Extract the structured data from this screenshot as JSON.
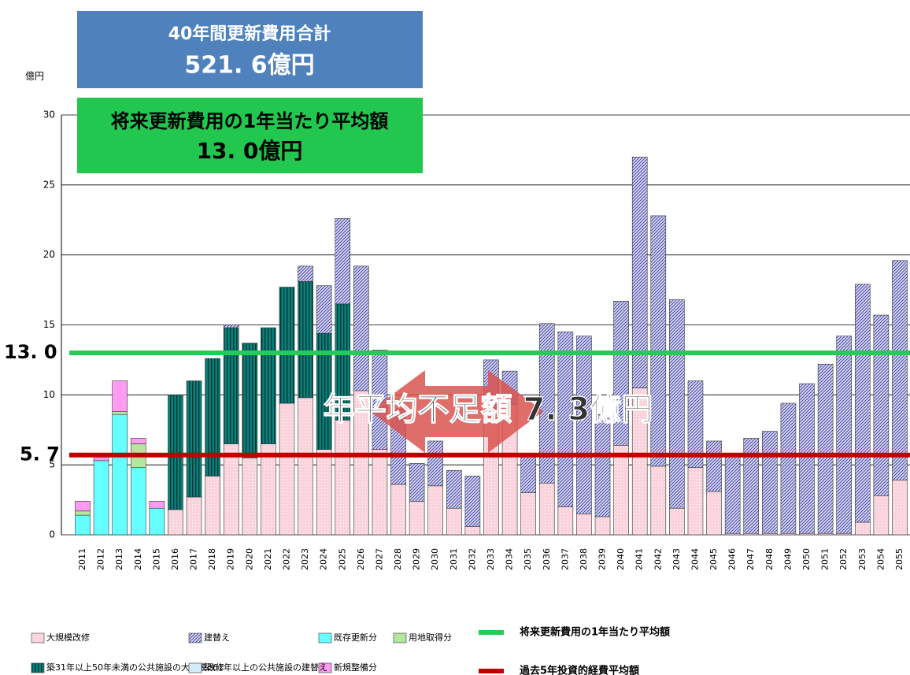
{
  "chart_data": {
    "type": "stacked-bar",
    "unit_label": "億円",
    "total_box": {
      "title": "40年間更新費用合計",
      "value": "521. 6億円"
    },
    "average_box": {
      "title": "将来更新費用の1年当たり平均額",
      "value": "13. 0億円"
    },
    "gap_label": "年平均不足額 7. 3億円",
    "categories": [
      "2011",
      "2012",
      "2013",
      "2014",
      "2015",
      "2016",
      "2017",
      "2018",
      "2019",
      "2020",
      "2021",
      "2022",
      "2023",
      "2024",
      "2025",
      "2026",
      "2027",
      "2028",
      "2029",
      "2030",
      "2031",
      "2032",
      "2033",
      "2034",
      "2035",
      "2036",
      "2037",
      "2038",
      "2039",
      "2040",
      "2041",
      "2042",
      "2043",
      "2044",
      "2045",
      "2046",
      "2047",
      "2048",
      "2049",
      "2050",
      "2051",
      "2052",
      "2053",
      "2054",
      "2055"
    ],
    "ylim": [
      0,
      30
    ],
    "yticks": [
      0,
      5,
      10,
      15,
      20,
      25,
      30
    ],
    "grid": true,
    "series": [
      {
        "name": "既存更新分",
        "color": "#66ffff",
        "pattern": "solid",
        "values": [
          1.4,
          5.3,
          8.6,
          4.8,
          1.9,
          0,
          0,
          0,
          0,
          0,
          0,
          0,
          0,
          0,
          0,
          0,
          0,
          0,
          0,
          0,
          0,
          0,
          0,
          0,
          0,
          0,
          0,
          0,
          0,
          0,
          0,
          0,
          0,
          0,
          0,
          0,
          0,
          0,
          0,
          0,
          0,
          0,
          0,
          0,
          0
        ]
      },
      {
        "name": "大規模改修",
        "color": "#fbd3dc",
        "pattern": "dots",
        "values": [
          0,
          0,
          0,
          0,
          0,
          1.8,
          2.7,
          4.2,
          6.5,
          5.5,
          6.5,
          9.4,
          9.8,
          6.1,
          8.2,
          10.3,
          6.1,
          3.6,
          2.4,
          3.5,
          1.9,
          0.6,
          9.0,
          9.3,
          3.0,
          3.7,
          2.0,
          1.5,
          1.3,
          6.4,
          10.5,
          4.9,
          1.9,
          4.8,
          3.1,
          0.1,
          0.1,
          0.1,
          0.1,
          0.1,
          0.1,
          0.1,
          0.9,
          2.8,
          3.9
        ]
      },
      {
        "name": "築31年以上50年未満の公共施設の大規模改修",
        "color": "#0b7f7a",
        "pattern": "vertical",
        "values": [
          0,
          0,
          0,
          0,
          0,
          8.2,
          8.3,
          8.4,
          8.3,
          8.2,
          8.3,
          8.3,
          8.3,
          8.3,
          8.3,
          0,
          0,
          0,
          0,
          0,
          0,
          0,
          0,
          0,
          0,
          0,
          0,
          0,
          0,
          0,
          0,
          0,
          0,
          0,
          0,
          0,
          0,
          0,
          0,
          0,
          0,
          0,
          0,
          0,
          0
        ]
      },
      {
        "name": "建替え",
        "color": "#d6d6f4",
        "pattern": "diagonal",
        "values": [
          0,
          0,
          0,
          0,
          0,
          0,
          0,
          0,
          0.2,
          0,
          0,
          0,
          1.1,
          3.4,
          6.1,
          8.9,
          7.1,
          5.4,
          2.7,
          3.2,
          2.7,
          3.6,
          3.5,
          2.4,
          2.6,
          11.4,
          12.5,
          12.7,
          7.3,
          10.3,
          16.5,
          17.9,
          14.9,
          6.2,
          3.6,
          5.5,
          6.8,
          7.3,
          9.3,
          10.7,
          12.1,
          14.1,
          17.0,
          12.9,
          15.7
        ]
      },
      {
        "name": "用地取得分",
        "color": "#b5e6a0",
        "pattern": "solid",
        "values": [
          0.3,
          0,
          0.2,
          1.7,
          0,
          0,
          0,
          0,
          0,
          0,
          0,
          0,
          0,
          0,
          0,
          0,
          0,
          0,
          0,
          0,
          0,
          0,
          0,
          0,
          0,
          0,
          0,
          0,
          0,
          0,
          0,
          0,
          0,
          0,
          0,
          0,
          0,
          0,
          0,
          0,
          0,
          0,
          0,
          0,
          0
        ]
      },
      {
        "name": "新規整備分",
        "color": "#ff9cf2",
        "pattern": "solid",
        "values": [
          0.7,
          0.3,
          2.2,
          0.4,
          0.5,
          0,
          0,
          0,
          0,
          0,
          0,
          0,
          0,
          0,
          0,
          0,
          0,
          0,
          0,
          0,
          0,
          0,
          0,
          0,
          0,
          0,
          0,
          0,
          0,
          0,
          0,
          0,
          0,
          0,
          0,
          0,
          0,
          0,
          0,
          0,
          0,
          0,
          0,
          0,
          0
        ]
      },
      {
        "name": "築61年以上の公共施設の建替え",
        "color": "#d3ecfb",
        "pattern": "solid",
        "values": [
          0,
          0,
          0,
          0,
          0,
          0,
          0,
          0,
          0,
          0,
          0,
          0,
          0,
          0,
          0,
          0,
          0,
          0,
          0,
          0,
          0,
          0,
          0,
          0,
          0,
          0,
          0,
          0,
          0,
          0,
          0,
          0,
          0,
          0,
          0,
          0,
          0,
          0,
          0,
          0,
          0,
          0,
          0,
          0,
          0
        ]
      }
    ],
    "reference_lines": [
      {
        "name": "将来更新費用の1年当たり平均額",
        "color": "#22cc55",
        "value": 13.0,
        "label": "13. 0"
      },
      {
        "name": "過去5年投資的経費平均額",
        "color": "#c00000",
        "value": 5.7,
        "label": "5. 7"
      }
    ]
  }
}
